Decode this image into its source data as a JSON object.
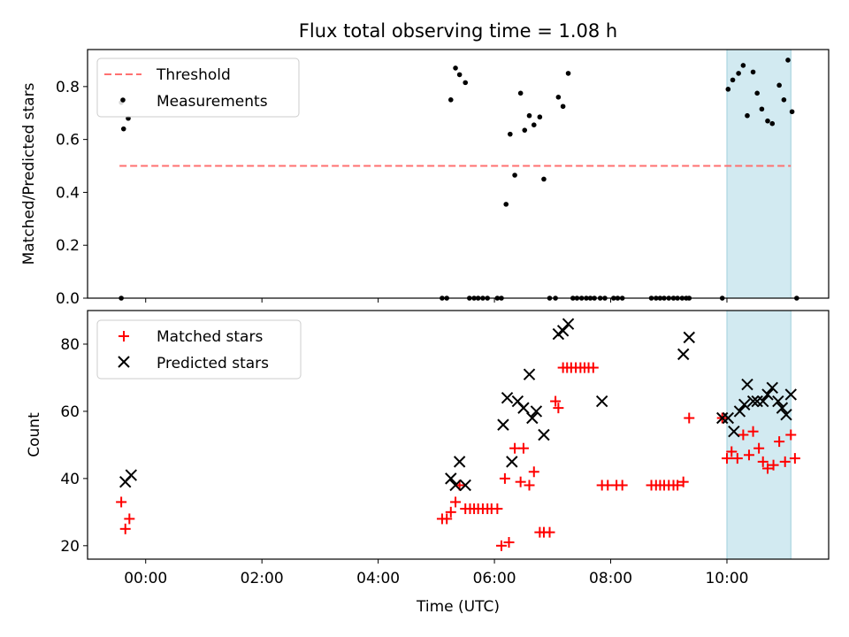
{
  "chart_data": {
    "title": "Flux total observing time = 1.08 h",
    "xlabel": "Time (UTC)",
    "x_unit": "hours since 00:00 UTC (ticks shown as HH:MM)",
    "xlim": [
      -1.0,
      11.75
    ],
    "x_ticks": [
      0,
      2,
      4,
      6,
      8,
      10
    ],
    "x_tick_labels": [
      "00:00",
      "02:00",
      "04:00",
      "06:00",
      "08:00",
      "10:00"
    ],
    "highlight_span": [
      10.0,
      11.1
    ],
    "highlight_color": "#add8e6",
    "top": {
      "type": "scatter",
      "ylabel": "Matched/Predicted stars",
      "ylim": [
        0,
        0.94
      ],
      "y_ticks": [
        0.0,
        0.2,
        0.4,
        0.6,
        0.8
      ],
      "y_tick_labels": [
        "0.0",
        "0.2",
        "0.4",
        "0.6",
        "0.8"
      ],
      "legend": [
        "Threshold",
        "Measurements"
      ],
      "threshold": {
        "name": "Threshold",
        "y": 0.5,
        "x_range": [
          -0.45,
          11.1
        ],
        "color": "#ff7070",
        "style": "dashed"
      },
      "measurements": {
        "name": "Measurements",
        "color": "#000000",
        "x": [
          -0.42,
          -0.38,
          -0.3,
          -0.42,
          5.1,
          5.18,
          5.25,
          5.33,
          5.4,
          5.5,
          5.57,
          5.65,
          5.72,
          5.8,
          5.88,
          6.05,
          6.12,
          6.2,
          6.27,
          6.35,
          6.45,
          6.52,
          6.6,
          6.68,
          6.78,
          6.85,
          6.95,
          7.05,
          7.1,
          7.18,
          7.27,
          7.35,
          7.42,
          7.5,
          7.58,
          7.65,
          7.72,
          7.82,
          7.9,
          8.05,
          8.12,
          8.2,
          8.7,
          8.78,
          8.85,
          8.92,
          9.0,
          9.08,
          9.15,
          9.23,
          9.3,
          9.35,
          9.92,
          10.02,
          10.1,
          10.2,
          10.28,
          10.35,
          10.45,
          10.52,
          10.6,
          10.7,
          10.78,
          10.9,
          10.98,
          11.05,
          11.12,
          11.2
        ],
        "y": [
          0.74,
          0.64,
          0.68,
          0.0,
          0.0,
          0.0,
          0.75,
          0.87,
          0.845,
          0.815,
          0.0,
          0.0,
          0.0,
          0.0,
          0.0,
          0.0,
          0.0,
          0.355,
          0.62,
          0.465,
          0.775,
          0.635,
          0.69,
          0.655,
          0.685,
          0.45,
          0.0,
          0.0,
          0.76,
          0.725,
          0.85,
          0.0,
          0.0,
          0.0,
          0.0,
          0.0,
          0.0,
          0.0,
          0.0,
          0.0,
          0.0,
          0.0,
          0.0,
          0.0,
          0.0,
          0.0,
          0.0,
          0.0,
          0.0,
          0.0,
          0.0,
          0.0,
          0.0,
          0.79,
          0.825,
          0.85,
          0.88,
          0.69,
          0.855,
          0.775,
          0.715,
          0.67,
          0.66,
          0.805,
          0.75,
          0.9,
          0.705,
          0.0
        ]
      }
    },
    "bottom": {
      "type": "scatter",
      "ylabel": "Count",
      "ylim": [
        16,
        90
      ],
      "y_ticks": [
        20,
        40,
        60,
        80
      ],
      "y_tick_labels": [
        "20",
        "40",
        "60",
        "80"
      ],
      "legend": [
        "Matched stars",
        "Predicted stars"
      ],
      "series": [
        {
          "name": "Matched stars",
          "marker": "plus",
          "color": "#ff0000",
          "x": [
            -0.42,
            -0.35,
            -0.28,
            5.1,
            5.18,
            5.25,
            5.33,
            5.4,
            5.5,
            5.58,
            5.65,
            5.72,
            5.8,
            5.88,
            5.95,
            6.05,
            6.12,
            6.18,
            6.25,
            6.35,
            6.45,
            6.5,
            6.6,
            6.68,
            6.78,
            6.85,
            6.95,
            7.05,
            7.1,
            7.18,
            7.25,
            7.32,
            7.4,
            7.48,
            7.55,
            7.62,
            7.7,
            7.85,
            7.95,
            8.1,
            8.2,
            8.7,
            8.78,
            8.85,
            8.92,
            9.0,
            9.08,
            9.15,
            9.25,
            9.35,
            9.92,
            10.0,
            10.08,
            10.18,
            10.28,
            10.38,
            10.45,
            10.55,
            10.62,
            10.7,
            10.8,
            10.9,
            11.0,
            11.1,
            11.17
          ],
          "y": [
            33,
            25,
            28,
            28,
            28,
            30,
            33,
            38,
            31,
            31,
            31,
            31,
            31,
            31,
            31,
            31,
            20,
            40,
            21,
            49,
            39,
            49,
            38,
            42,
            24,
            24,
            24,
            63,
            61,
            73,
            73,
            73,
            73,
            73,
            73,
            73,
            73,
            38,
            38,
            38,
            38,
            38,
            38,
            38,
            38,
            38,
            38,
            38,
            39,
            58,
            58,
            46,
            48,
            46,
            53,
            47,
            54,
            49,
            45,
            43,
            44,
            51,
            45,
            53,
            46
          ]
        },
        {
          "name": "Predicted stars",
          "marker": "x",
          "color": "#000000",
          "x": [
            -0.35,
            -0.25,
            5.25,
            5.33,
            5.4,
            5.5,
            6.15,
            6.22,
            6.3,
            6.4,
            6.5,
            6.6,
            6.65,
            6.72,
            6.85,
            7.1,
            7.18,
            7.27,
            7.85,
            9.25,
            9.35,
            9.92,
            10.02,
            10.12,
            10.22,
            10.3,
            10.35,
            10.45,
            10.52,
            10.62,
            10.7,
            10.78,
            10.88,
            10.95,
            11.02,
            11.1
          ],
          "y": [
            39,
            41,
            40,
            38,
            45,
            38,
            56,
            64,
            45,
            63,
            61,
            71,
            58,
            60,
            53,
            83,
            84,
            86,
            63,
            77,
            82,
            58,
            58,
            54,
            60,
            62,
            68,
            63,
            63,
            63,
            65,
            67,
            63,
            61,
            59,
            65
          ]
        }
      ]
    }
  }
}
